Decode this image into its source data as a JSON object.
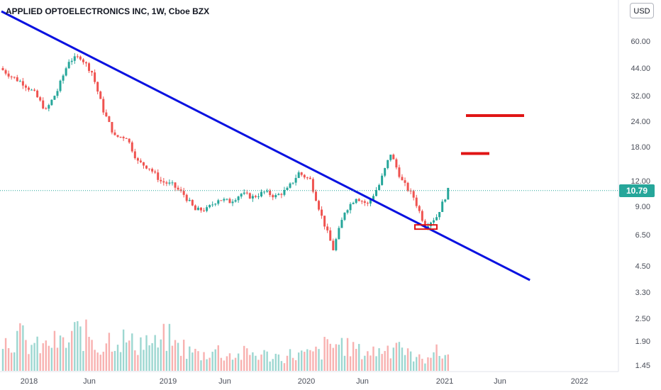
{
  "header": {
    "title": "APPLIED OPTOELECTRONICS INC, 1W, Cboe BZX",
    "currency": "USD"
  },
  "price_axis": {
    "labels": [
      "60.00",
      "44.00",
      "32.00",
      "24.00",
      "18.00",
      "12.00",
      "9.00",
      "6.50",
      "4.50",
      "3.30",
      "2.50",
      "1.90",
      "1.45"
    ],
    "last_price": "10.79"
  },
  "time_axis": {
    "labels": [
      "2018",
      "Jun",
      "2019",
      "Jun",
      "2020",
      "Jun",
      "2021",
      "Jun",
      "2022"
    ]
  },
  "colors": {
    "up": "#26a69a",
    "down": "#ef5350",
    "trendline": "#0a12e0",
    "levels": "#e01515",
    "last_price_line": "#26a69a"
  },
  "chart_data": {
    "type": "candlestick",
    "title": "APPLIED OPTOELECTRONICS INC, 1W, Cboe BZX",
    "scale": "log",
    "currency": "USD",
    "last_price": 10.79,
    "close_series": {
      "dates": [
        "2017-10",
        "2017-11",
        "2017-12",
        "2018-01",
        "2018-02",
        "2018-03",
        "2018-04",
        "2018-05",
        "2018-06",
        "2018-07",
        "2018-08",
        "2018-09",
        "2018-10",
        "2018-11",
        "2018-12",
        "2019-01",
        "2019-02",
        "2019-03",
        "2019-04",
        "2019-05",
        "2019-06",
        "2019-07",
        "2019-08",
        "2019-09",
        "2019-10",
        "2019-11",
        "2019-12",
        "2020-01",
        "2020-02",
        "2020-03",
        "2020-04",
        "2020-05",
        "2020-06",
        "2020-07",
        "2020-08",
        "2020-09",
        "2020-10",
        "2020-11",
        "2020-12",
        "2021-01"
      ],
      "values": [
        44,
        40,
        37,
        33,
        27,
        34,
        48,
        50,
        42,
        27,
        20,
        20,
        15,
        14,
        12,
        11.5,
        10.3,
        8.6,
        8.7,
        9.8,
        9.5,
        10.4,
        10,
        10.6,
        10.1,
        10.9,
        13.2,
        12.2,
        8,
        5.5,
        8.5,
        10,
        9.2,
        11.5,
        16.5,
        12,
        10,
        7.2,
        8,
        10.8
      ]
    },
    "annotations": [
      {
        "type": "trendline",
        "from": {
          "date": "2017-10",
          "value": 140
        },
        "to": {
          "date": "2021-08",
          "value": 3.8
        }
      },
      {
        "type": "level",
        "from": "2021-02",
        "to": "2021-04",
        "value": 16.5
      },
      {
        "type": "level",
        "from": "2021-03",
        "to": "2021-08",
        "value": 25.5
      },
      {
        "type": "support-box",
        "value": 7.1
      }
    ],
    "volume": {
      "dates": [
        "2017-10",
        "2017-11",
        "2017-12",
        "2018-01",
        "2018-02",
        "2018-03",
        "2018-04",
        "2018-05",
        "2018-06",
        "2018-07",
        "2018-08",
        "2018-09",
        "2018-10",
        "2018-11",
        "2018-12",
        "2019-01",
        "2019-02",
        "2019-03",
        "2019-04",
        "2019-05",
        "2019-06",
        "2019-07",
        "2019-08",
        "2019-09",
        "2019-10",
        "2019-11",
        "2019-12",
        "2020-01",
        "2020-02",
        "2020-03",
        "2020-04",
        "2020-05",
        "2020-06",
        "2020-07",
        "2020-08",
        "2020-09",
        "2020-10",
        "2020-11",
        "2020-12",
        "2021-01"
      ],
      "values": [
        0.55,
        0.62,
        0.48,
        0.44,
        0.52,
        0.5,
        0.7,
        0.65,
        0.45,
        0.6,
        0.58,
        0.5,
        0.55,
        0.48,
        0.6,
        0.45,
        0.35,
        0.3,
        0.38,
        0.3,
        0.28,
        0.32,
        0.3,
        0.28,
        0.26,
        0.3,
        0.3,
        0.34,
        0.45,
        0.5,
        0.42,
        0.35,
        0.36,
        0.42,
        0.55,
        0.3,
        0.22,
        0.34,
        0.3,
        0.3
      ]
    }
  }
}
